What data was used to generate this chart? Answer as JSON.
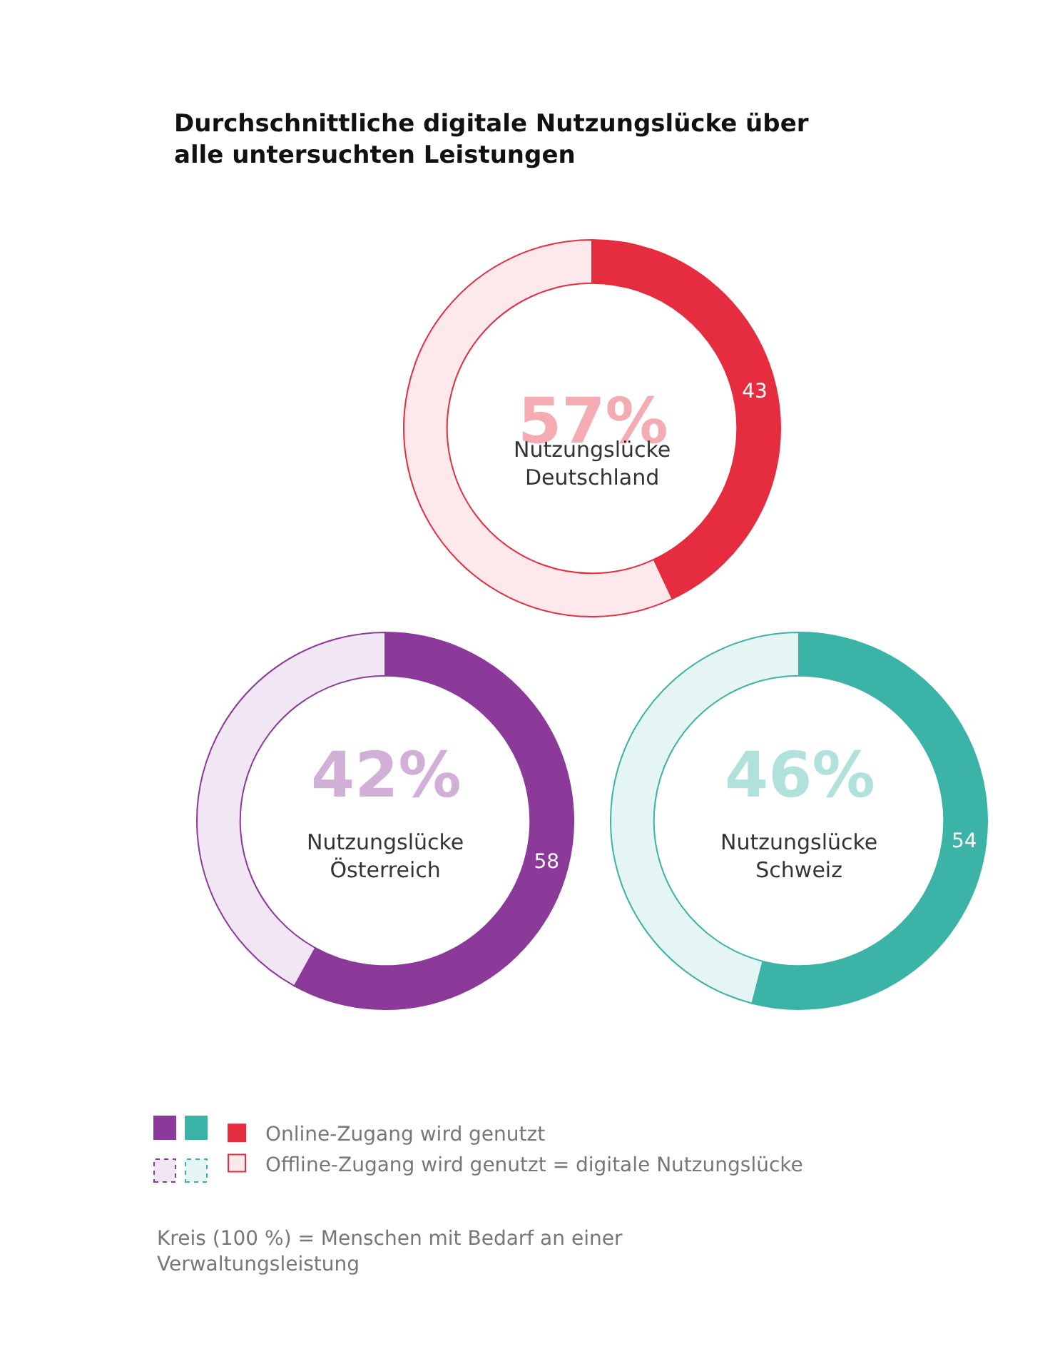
{
  "chart_data": [
    {
      "type": "donut",
      "title": "Durchschnittliche digitale Nutzungslücke über\nalle untersuchten Leistungen",
      "subtitle": "Nutzungslücke\nDeutschland",
      "categories": [
        "Online-Zugang wird genutzt",
        "Offline-Zugang wird genutzt = digitale Nutzungslücke"
      ],
      "values": [
        43,
        57
      ],
      "colors": [
        "#e52d3f",
        "#fde9eb"
      ],
      "value_labels": [
        "43",
        "57%"
      ],
      "legend": "bottom",
      "annotations": [
        "Kreis (100 %) = Menschen mit Bedarf an einer\nVerwaltungsleistung"
      ]
    },
    {
      "type": "donut",
      "subtitle": "Nutzungslücke\nÖsterreich",
      "categories": [
        null,
        null
      ],
      "values": [
        58,
        42
      ],
      "colors": [
        "#8b3a9a",
        "#f1e7f4"
      ],
      "value_labels": [
        "58",
        "42%"
      ]
    },
    {
      "type": "donut",
      "subtitle": "Nutzungslücke\nSchweiz",
      "categories": [
        null,
        null
      ],
      "values": [
        54,
        46
      ],
      "colors": [
        "#3bb3a6",
        "#e4f5f3"
      ],
      "value_labels": [
        "54",
        "46%"
      ]
    }
  ]
}
